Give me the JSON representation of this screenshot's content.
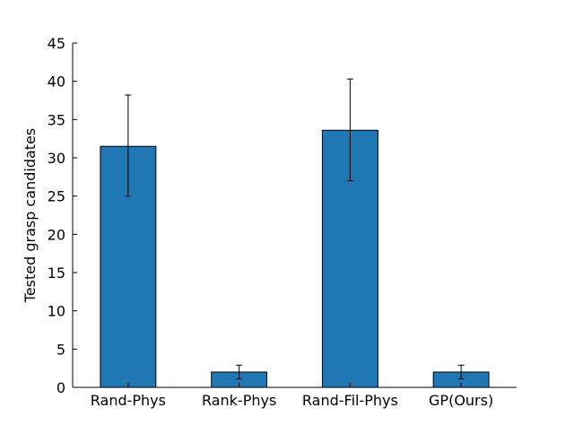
{
  "chart_data": {
    "type": "bar",
    "title": "",
    "xlabel": "",
    "ylabel": "Tested grasp candidates",
    "categories": [
      "Rand-Phys",
      "Rank-Phys",
      "Rand-Fil-Phys",
      "GP(Ours)"
    ],
    "values": [
      31.5,
      2.0,
      33.6,
      2.0
    ],
    "error_low": [
      25.0,
      1.1,
      27.0,
      1.1
    ],
    "error_high": [
      38.2,
      2.9,
      40.3,
      2.9
    ],
    "ylim": [
      0,
      45
    ],
    "yticks": [
      0,
      5,
      10,
      15,
      20,
      25,
      30,
      35,
      40,
      45
    ],
    "bar_color": "#1f77b4",
    "grid": false,
    "legend": "none"
  }
}
